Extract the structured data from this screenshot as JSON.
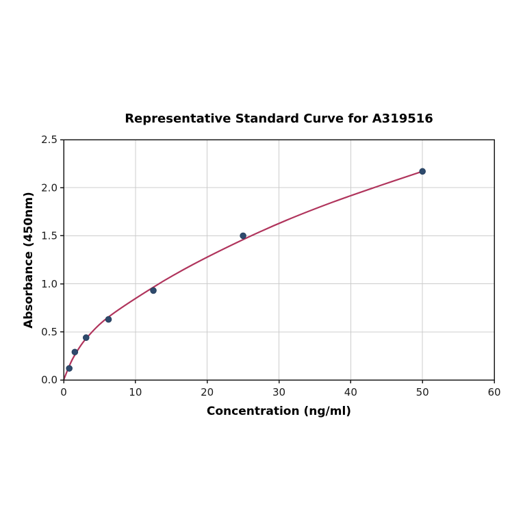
{
  "chart_data": {
    "type": "scatter",
    "title": "Representative Standard Curve for A319516",
    "xlabel": "Concentration (ng/ml)",
    "ylabel": "Absorbance (450nm)",
    "xlim": [
      0,
      60
    ],
    "ylim": [
      0,
      2.5
    ],
    "xticks": [
      0,
      10,
      20,
      30,
      40,
      50,
      60
    ],
    "xtick_labels": [
      "0",
      "10",
      "20",
      "30",
      "40",
      "50",
      "60"
    ],
    "yticks": [
      0,
      0.5,
      1.0,
      1.5,
      2.0,
      2.5
    ],
    "ytick_labels": [
      "0.0",
      "0.5",
      "1.0",
      "1.5",
      "2.0",
      "2.5"
    ],
    "grid": true,
    "legend_position": "none",
    "points": {
      "x": [
        0.78,
        1.56,
        3.125,
        6.25,
        12.5,
        25,
        50
      ],
      "y": [
        0.12,
        0.29,
        0.44,
        0.63,
        0.93,
        1.5,
        2.17
      ]
    },
    "fit_curve": {
      "x": [
        0,
        0.78,
        1.56,
        3.125,
        6.25,
        12.5,
        18,
        25,
        31,
        37.5,
        44,
        50
      ],
      "y": [
        0.0,
        0.145,
        0.26,
        0.43,
        0.655,
        0.965,
        1.2,
        1.46,
        1.66,
        1.85,
        2.02,
        2.17
      ]
    },
    "colors": {
      "marker": "#2e4a6d",
      "marker_edge": "#27405e",
      "line": "#b0345c",
      "grid": "#cccccc",
      "axis": "#1a1a1a",
      "tick_text": "#1a1a1a",
      "background": "#ffffff"
    }
  }
}
